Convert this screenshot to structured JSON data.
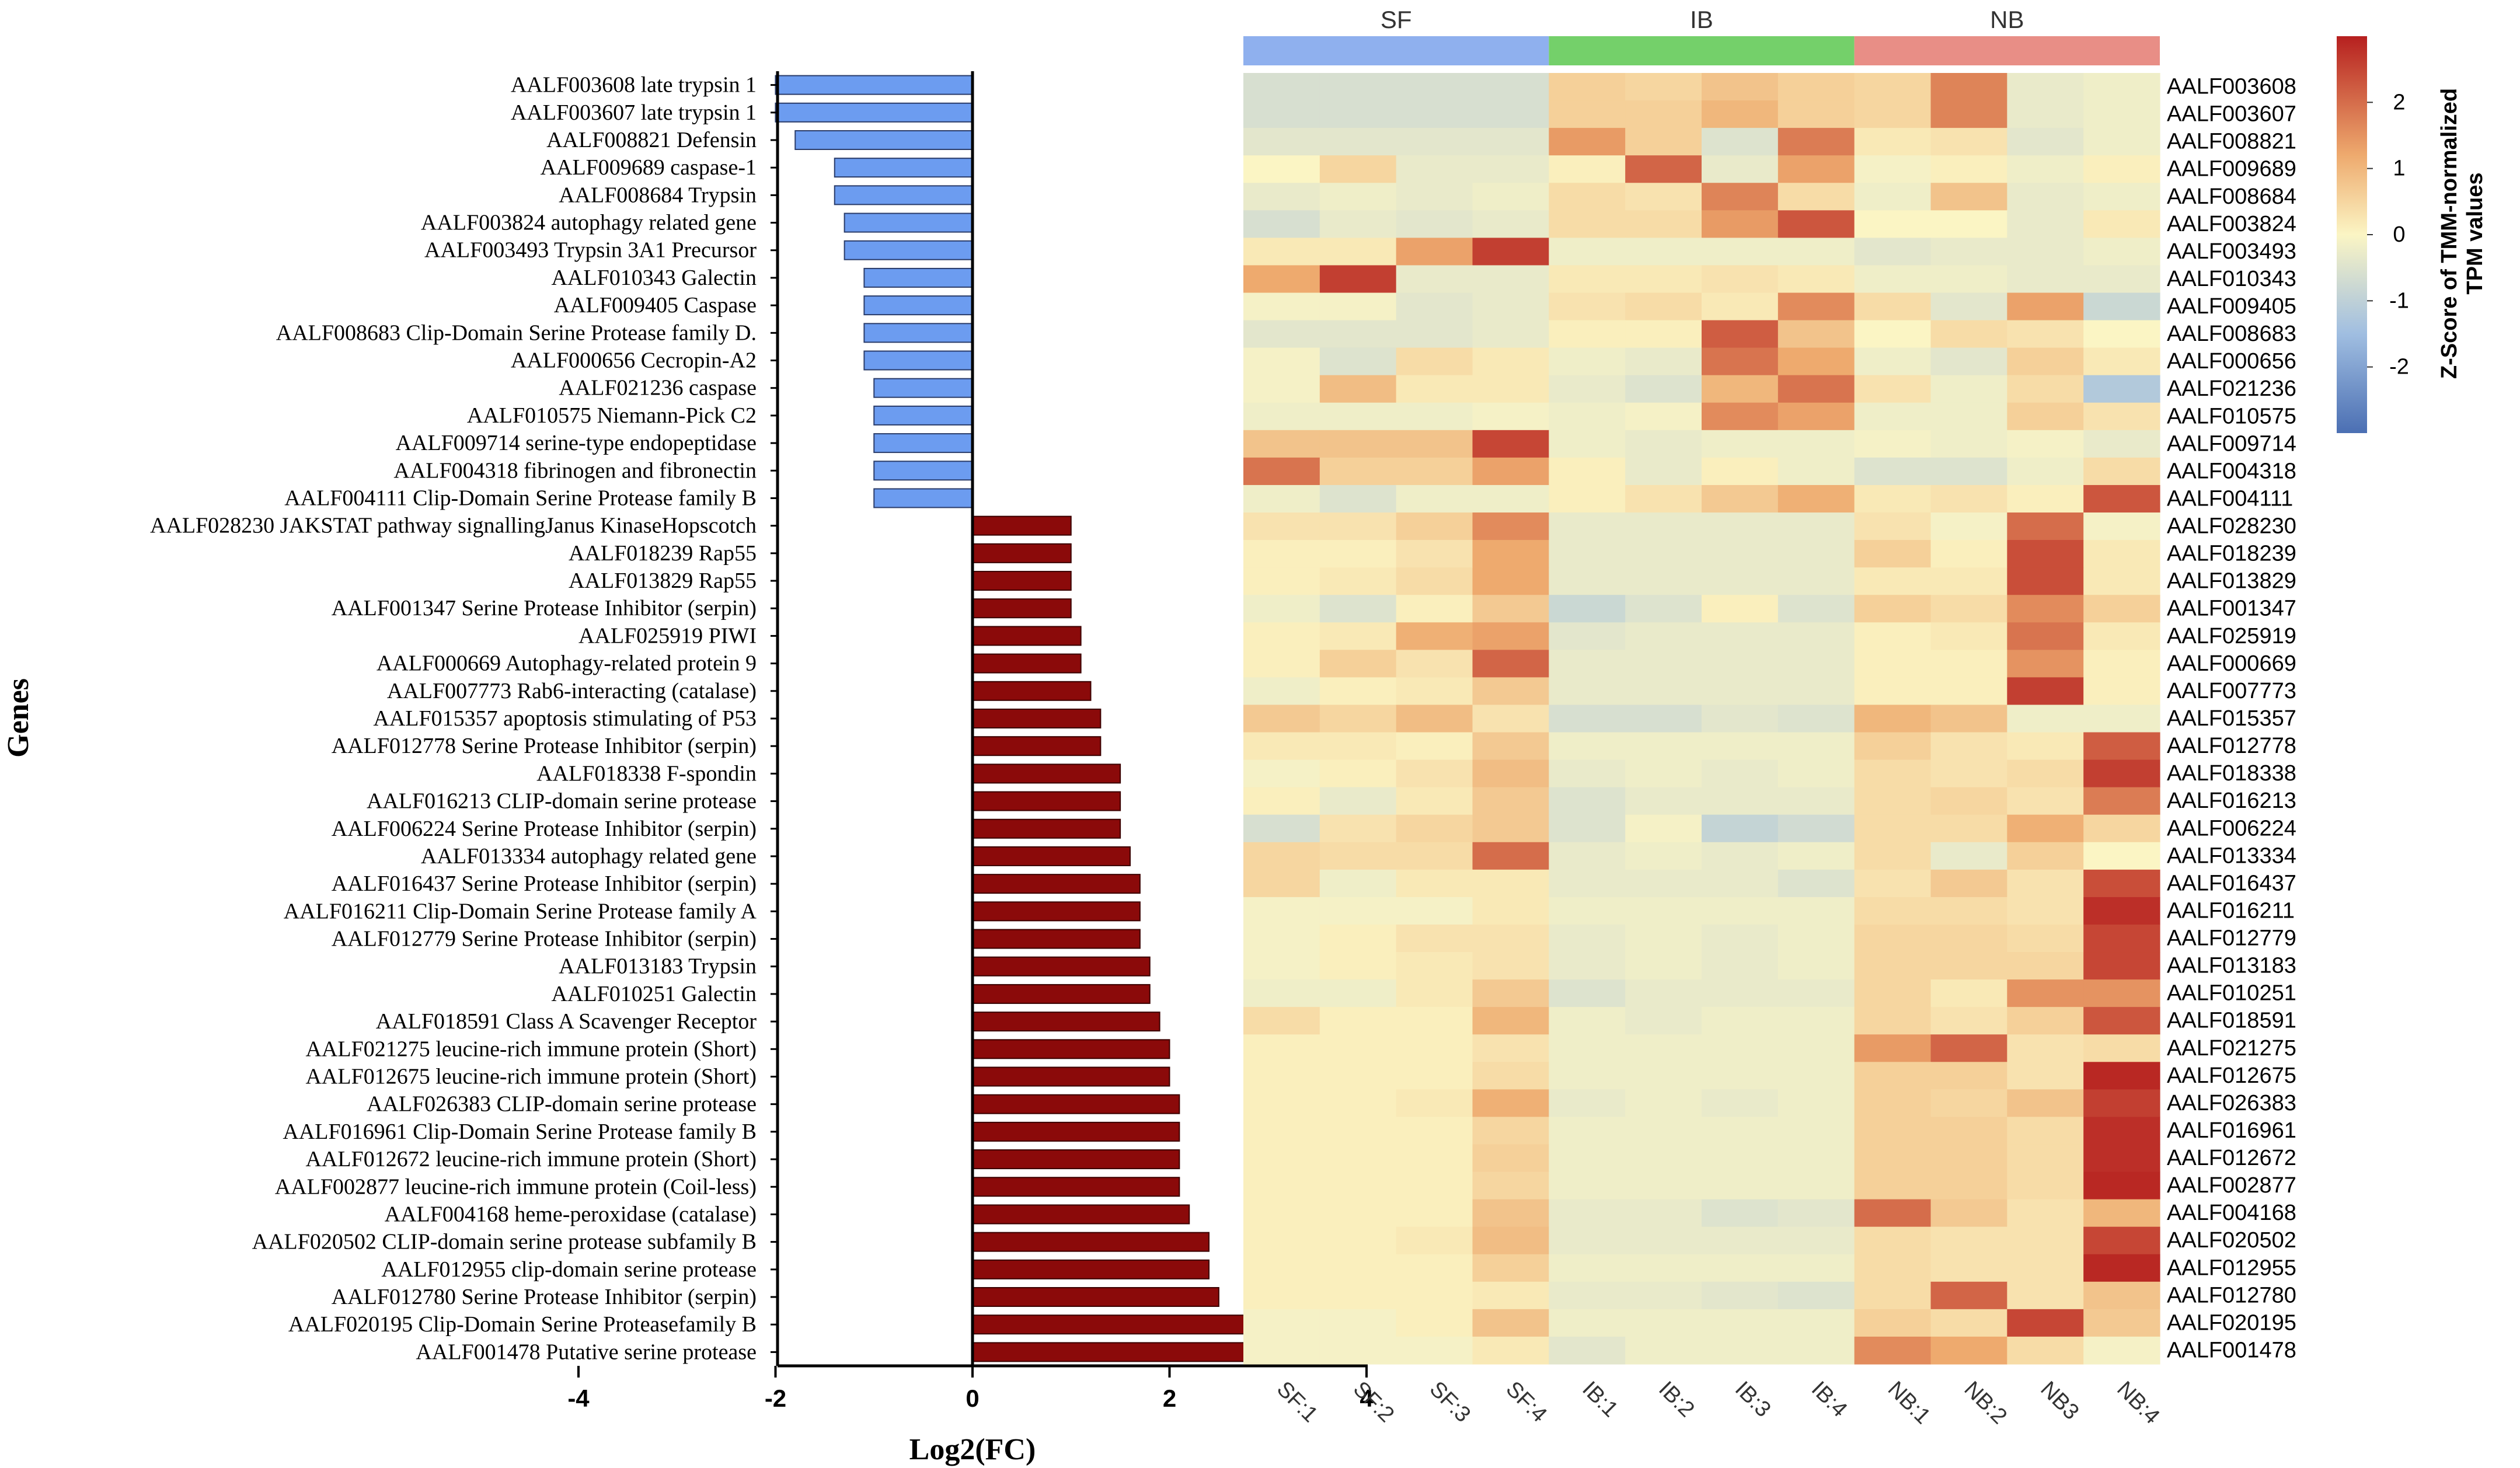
{
  "colors": {
    "negative_bar": "#6c9cf0",
    "positive_bar": "#8b0a0a",
    "group_sf": "#8fb0ee",
    "group_ib": "#74d06a",
    "group_nb": "#e88e86",
    "heat_low": "#4b6fb3",
    "heat_mid": "#fbf5c4",
    "heat_high": "#b6201f"
  },
  "chart_data": [
    {
      "type": "bar",
      "orientation": "horizontal",
      "title": "",
      "xlabel": "Log2(FC)",
      "ylabel": "Genes",
      "xlim": [
        -4,
        4
      ],
      "xticks": [
        "-4",
        "-2",
        "0",
        "2",
        "4"
      ],
      "categories": [
        "AALF003608 late trypsin 1",
        "AALF003607 late trypsin 1",
        "AALF008821 Defensin",
        "AALF009689 caspase-1",
        "AALF008684 Trypsin",
        "AALF003824 autophagy related gene",
        "AALF003493 Trypsin 3A1 Precursor",
        "AALF010343 Galectin",
        "AALF009405 Caspase",
        "AALF008683 Clip-Domain Serine Protease family D.",
        "AALF000656 Cecropin-A2",
        "AALF021236 caspase",
        "AALF010575 Niemann-Pick C2",
        "AALF009714 serine-type endopeptidase",
        "AALF004318 fibrinogen and fibronectin",
        "AALF004111 Clip-Domain Serine Protease family B",
        "AALF028230 JAKSTAT pathway signallingJanus KinaseHopscotch",
        "AALF018239 Rap55",
        "AALF013829 Rap55",
        "AALF001347 Serine Protease Inhibitor (serpin)",
        "AALF025919 PIWI",
        "AALF000669 Autophagy-related protein 9",
        "AALF007773 Rab6-interacting (catalase)",
        "AALF015357 apoptosis stimulating of P53",
        "AALF012778 Serine Protease Inhibitor (serpin)",
        "AALF018338 F-spondin",
        "AALF016213 CLIP-domain serine protease",
        "AALF006224 Serine Protease Inhibitor (serpin)",
        "AALF013334 autophagy related gene",
        "AALF016437 Serine Protease Inhibitor (serpin)",
        "AALF016211 Clip-Domain Serine Protease family A",
        "AALF012779 Serine Protease Inhibitor (serpin)",
        "AALF013183 Trypsin",
        "AALF010251 Galectin",
        "AALF018591 Class A Scavenger Receptor",
        "AALF021275 leucine-rich immune protein (Short)",
        "AALF012675 leucine-rich immune protein (Short)",
        "AALF026383 CLIP-domain serine protease",
        "AALF016961 Clip-Domain Serine Protease family B",
        "AALF012672 leucine-rich immune protein (Short)",
        "AALF002877 leucine-rich immune protein (Coil-less)",
        "AALF004168 heme-peroxidase (catalase)",
        "AALF020502 CLIP-domain serine protease subfamily B",
        "AALF012955 clip-domain serine protease",
        "AALF012780 Serine Protease Inhibitor (serpin)",
        "AALF020195 Clip-Domain Serine Proteasefamily B",
        "AALF001478 Putative serine protease"
      ],
      "values": [
        -2.0,
        -2.0,
        -1.8,
        -1.4,
        -1.4,
        -1.3,
        -1.3,
        -1.1,
        -1.1,
        -1.1,
        -1.1,
        -1.0,
        -1.0,
        -1.0,
        -1.0,
        -1.0,
        1.0,
        1.0,
        1.0,
        1.0,
        1.1,
        1.1,
        1.2,
        1.3,
        1.3,
        1.5,
        1.5,
        1.5,
        1.6,
        1.7,
        1.7,
        1.7,
        1.8,
        1.8,
        1.9,
        2.0,
        2.0,
        2.1,
        2.1,
        2.1,
        2.1,
        2.2,
        2.4,
        2.4,
        2.5,
        2.8,
        3.3
      ]
    },
    {
      "type": "heatmap",
      "title": "",
      "groups": [
        {
          "name": "SF",
          "span": 4
        },
        {
          "name": "IB",
          "span": 4
        },
        {
          "name": "NB",
          "span": 4
        }
      ],
      "columns": [
        "SF:1",
        "SF:2",
        "SF:3",
        "SF:4",
        "IB:1",
        "IB:2",
        "IB:3",
        "IB:4",
        "NB:1",
        "NB:2",
        "NB3",
        "NB:4"
      ],
      "rows": [
        "AALF003608",
        "AALF003607",
        "AALF008821",
        "AALF009689",
        "AALF008684",
        "AALF003824",
        "AALF003493",
        "AALF010343",
        "AALF009405",
        "AALF008683",
        "AALF000656",
        "AALF021236",
        "AALF010575",
        "AALF009714",
        "AALF004318",
        "AALF004111",
        "AALF028230",
        "AALF018239",
        "AALF013829",
        "AALF001347",
        "AALF025919",
        "AALF000669",
        "AALF007773",
        "AALF015357",
        "AALF012778",
        "AALF018338",
        "AALF016213",
        "AALF006224",
        "AALF013334",
        "AALF016437",
        "AALF016211",
        "AALF012779",
        "AALF013183",
        "AALF010251",
        "AALF018591",
        "AALF021275",
        "AALF012675",
        "AALF026383",
        "AALF016961",
        "AALF012672",
        "AALF002877",
        "AALF004168",
        "AALF020502",
        "AALF012955",
        "AALF012780",
        "AALF020195",
        "AALF001478"
      ],
      "values": [
        [
          -0.6,
          -0.6,
          -0.6,
          -0.6,
          0.6,
          0.5,
          0.8,
          0.6,
          0.5,
          1.7,
          -0.3,
          -0.2
        ],
        [
          -0.6,
          -0.6,
          -0.6,
          -0.6,
          0.6,
          0.6,
          1.0,
          0.6,
          0.5,
          1.7,
          -0.3,
          -0.2
        ],
        [
          -0.4,
          -0.4,
          -0.4,
          -0.4,
          1.4,
          0.6,
          -0.5,
          1.8,
          0.2,
          0.3,
          -0.4,
          -0.2
        ],
        [
          0.0,
          0.5,
          -0.3,
          -0.3,
          0.1,
          2.1,
          -0.3,
          1.3,
          -0.1,
          0.1,
          -0.2,
          0.1
        ],
        [
          -0.3,
          -0.2,
          -0.3,
          -0.2,
          0.4,
          0.3,
          1.7,
          0.4,
          -0.2,
          0.8,
          -0.3,
          -0.2
        ],
        [
          -0.6,
          -0.3,
          -0.4,
          -0.3,
          0.4,
          0.4,
          1.4,
          2.3,
          0.0,
          0.0,
          -0.3,
          0.2
        ],
        [
          0.2,
          0.2,
          1.3,
          2.6,
          -0.2,
          -0.2,
          -0.2,
          -0.2,
          -0.4,
          -0.3,
          -0.3,
          -0.2
        ],
        [
          1.2,
          2.6,
          -0.3,
          -0.3,
          0.2,
          0.2,
          0.3,
          0.2,
          -0.2,
          -0.2,
          -0.3,
          -0.3
        ],
        [
          -0.1,
          -0.1,
          -0.4,
          -0.3,
          0.3,
          0.4,
          0.2,
          1.6,
          0.4,
          -0.4,
          1.3,
          -0.8
        ],
        [
          -0.4,
          -0.4,
          -0.4,
          -0.3,
          0.1,
          0.1,
          2.2,
          0.8,
          0.0,
          0.4,
          0.3,
          0.0
        ],
        [
          -0.1,
          -0.5,
          0.4,
          0.2,
          -0.2,
          -0.3,
          1.9,
          1.2,
          -0.2,
          -0.4,
          0.6,
          0.2
        ],
        [
          -0.1,
          0.9,
          0.2,
          0.2,
          -0.3,
          -0.5,
          1.0,
          1.9,
          0.3,
          -0.2,
          0.4,
          -1.2
        ],
        [
          -0.2,
          -0.2,
          -0.2,
          -0.1,
          -0.2,
          -0.1,
          1.6,
          1.3,
          -0.2,
          -0.2,
          0.6,
          0.3
        ],
        [
          0.8,
          0.8,
          0.8,
          2.5,
          -0.2,
          -0.3,
          -0.2,
          -0.2,
          -0.1,
          -0.2,
          -0.1,
          -0.3
        ],
        [
          1.9,
          0.6,
          0.6,
          1.3,
          0.1,
          -0.3,
          0.1,
          -0.2,
          -0.5,
          -0.5,
          -0.2,
          0.4
        ],
        [
          -0.2,
          -0.5,
          -0.2,
          -0.2,
          0.1,
          0.3,
          0.7,
          1.1,
          0.2,
          0.3,
          0.1,
          2.3
        ],
        [
          0.3,
          0.3,
          0.6,
          1.6,
          -0.3,
          -0.3,
          -0.3,
          -0.3,
          0.3,
          -0.1,
          2.0,
          -0.1
        ],
        [
          0.1,
          0.1,
          0.3,
          1.2,
          -0.3,
          -0.3,
          -0.3,
          -0.3,
          0.6,
          0.1,
          2.4,
          0.2
        ],
        [
          0.1,
          0.2,
          0.4,
          1.2,
          -0.3,
          -0.3,
          -0.3,
          -0.3,
          0.2,
          0.2,
          2.4,
          0.2
        ],
        [
          -0.2,
          -0.5,
          0.1,
          0.7,
          -0.8,
          -0.5,
          0.1,
          -0.5,
          0.6,
          0.4,
          1.6,
          0.6
        ],
        [
          0.1,
          0.2,
          1.1,
          1.3,
          -0.4,
          -0.3,
          -0.3,
          -0.3,
          0.1,
          0.2,
          1.9,
          0.2
        ],
        [
          0.1,
          0.6,
          0.3,
          2.1,
          -0.3,
          -0.3,
          -0.3,
          -0.3,
          0.1,
          0.1,
          1.5,
          0.1
        ],
        [
          -0.2,
          0.1,
          0.2,
          0.7,
          -0.3,
          -0.3,
          -0.3,
          -0.3,
          0.1,
          0.1,
          2.6,
          0.1
        ],
        [
          0.7,
          0.5,
          0.9,
          0.3,
          -0.6,
          -0.6,
          -0.4,
          -0.5,
          1.0,
          0.8,
          -0.2,
          -0.2
        ],
        [
          0.2,
          0.2,
          0.1,
          0.7,
          -0.2,
          -0.2,
          -0.2,
          -0.2,
          0.6,
          0.3,
          0.2,
          2.2
        ],
        [
          -0.1,
          0.1,
          0.3,
          0.9,
          -0.3,
          -0.2,
          -0.3,
          -0.2,
          0.4,
          0.3,
          0.4,
          2.6
        ],
        [
          0.1,
          -0.3,
          0.2,
          0.7,
          -0.5,
          -0.3,
          -0.3,
          -0.3,
          0.4,
          0.5,
          0.3,
          1.8
        ],
        [
          -0.6,
          0.3,
          0.5,
          0.7,
          -0.5,
          -0.1,
          -0.9,
          -0.7,
          0.4,
          0.4,
          1.1,
          0.5
        ],
        [
          0.5,
          0.4,
          0.4,
          2.0,
          -0.3,
          -0.2,
          -0.3,
          -0.2,
          0.4,
          -0.3,
          0.6,
          0.0
        ],
        [
          0.5,
          -0.2,
          0.2,
          0.2,
          -0.3,
          -0.3,
          -0.3,
          -0.5,
          0.3,
          0.7,
          0.3,
          2.4
        ],
        [
          -0.1,
          -0.1,
          -0.1,
          0.2,
          -0.2,
          -0.2,
          -0.2,
          -0.2,
          0.4,
          0.4,
          0.3,
          2.8
        ],
        [
          -0.1,
          0.1,
          0.3,
          0.3,
          -0.3,
          -0.2,
          -0.3,
          -0.2,
          0.5,
          0.5,
          0.4,
          2.5
        ],
        [
          -0.1,
          0.1,
          0.2,
          0.3,
          -0.3,
          -0.2,
          -0.3,
          -0.2,
          0.5,
          0.5,
          0.5,
          2.5
        ],
        [
          -0.2,
          -0.2,
          0.2,
          0.7,
          -0.5,
          -0.3,
          -0.3,
          -0.3,
          0.5,
          0.2,
          1.5,
          1.5
        ],
        [
          0.4,
          0.1,
          0.1,
          1.0,
          -0.2,
          -0.3,
          -0.2,
          -0.2,
          0.5,
          0.3,
          0.6,
          2.3
        ],
        [
          0.1,
          0.1,
          0.1,
          0.3,
          -0.2,
          -0.2,
          -0.2,
          -0.2,
          1.4,
          2.1,
          0.3,
          0.4
        ],
        [
          0.1,
          0.1,
          0.1,
          0.4,
          -0.2,
          -0.2,
          -0.2,
          -0.2,
          0.6,
          0.6,
          0.3,
          2.9
        ],
        [
          0.1,
          0.1,
          0.2,
          1.1,
          -0.3,
          -0.2,
          -0.3,
          -0.2,
          0.6,
          0.5,
          0.8,
          2.6
        ],
        [
          0.1,
          0.1,
          0.1,
          0.5,
          -0.2,
          -0.2,
          -0.2,
          -0.2,
          0.6,
          0.6,
          0.4,
          2.8
        ],
        [
          0.1,
          0.1,
          0.1,
          0.6,
          -0.2,
          -0.2,
          -0.2,
          -0.2,
          0.6,
          0.6,
          0.4,
          2.8
        ],
        [
          0.1,
          0.1,
          0.1,
          0.5,
          -0.2,
          -0.2,
          -0.2,
          -0.2,
          0.6,
          0.6,
          0.4,
          2.9
        ],
        [
          0.1,
          0.1,
          0.1,
          0.8,
          -0.3,
          -0.3,
          -0.5,
          -0.4,
          2.0,
          0.7,
          0.3,
          1.0
        ],
        [
          0.1,
          0.1,
          0.2,
          0.9,
          -0.3,
          -0.3,
          -0.3,
          -0.3,
          0.4,
          0.3,
          0.3,
          2.5
        ],
        [
          0.1,
          0.1,
          0.1,
          0.6,
          -0.2,
          -0.2,
          -0.2,
          -0.2,
          0.4,
          0.3,
          0.3,
          2.9
        ],
        [
          0.1,
          0.1,
          0.1,
          0.2,
          -0.3,
          -0.3,
          -0.4,
          -0.5,
          0.4,
          2.1,
          0.3,
          0.8
        ],
        [
          -0.1,
          -0.1,
          0.1,
          0.8,
          -0.2,
          -0.2,
          -0.2,
          -0.2,
          0.6,
          0.4,
          2.5,
          0.7
        ],
        [
          -0.1,
          -0.1,
          -0.1,
          0.2,
          -0.4,
          -0.2,
          -0.2,
          -0.2,
          1.6,
          1.2,
          0.4,
          -0.1
        ]
      ],
      "colorbar": {
        "label_line1": "Z-Score of TMM-normalized",
        "label_line2": "TPM values",
        "range": [
          -3,
          3
        ],
        "ticks": [
          "2",
          "1",
          "0",
          "-1",
          "-2"
        ]
      }
    }
  ]
}
